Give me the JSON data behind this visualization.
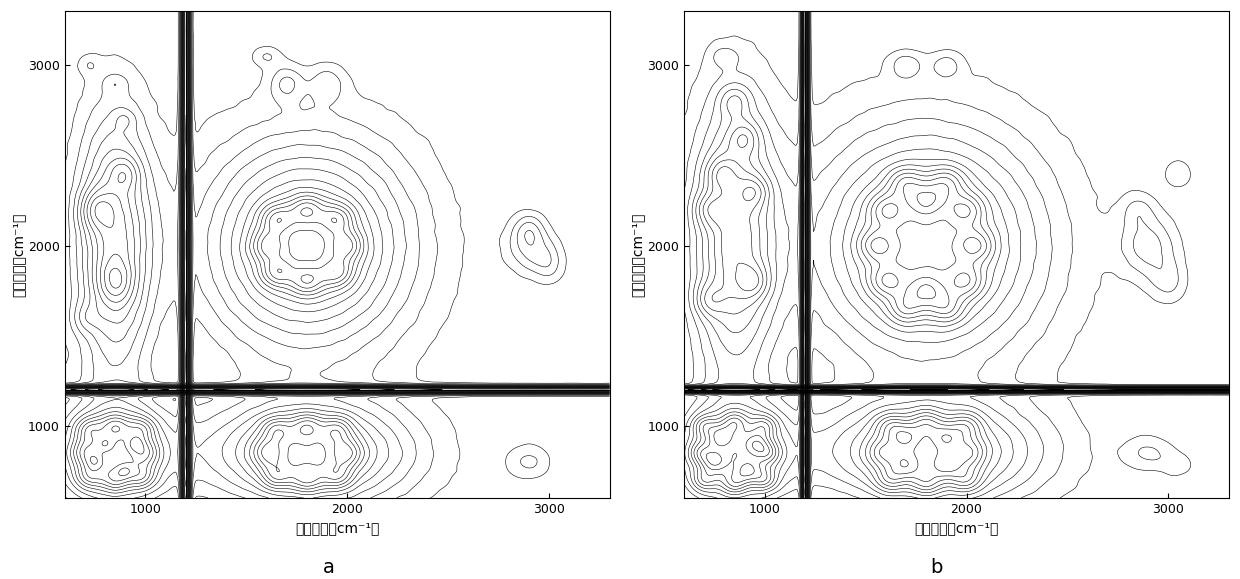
{
  "x_range": [
    600,
    3300
  ],
  "y_range": [
    600,
    3300
  ],
  "x_ticks": [
    1000,
    2000,
    3000
  ],
  "y_ticks": [
    1000,
    2000,
    3000
  ],
  "xlabel": "拉曼位移（cm⁻¹）",
  "ylabel": "拉曼位移（cm⁻¹）",
  "label_a": "a",
  "label_b": "b",
  "n_levels": 35,
  "cross_x": 1200,
  "cross_y": 1200,
  "background_color": "#ffffff",
  "line_color": "#000000",
  "linewidth": 0.4
}
